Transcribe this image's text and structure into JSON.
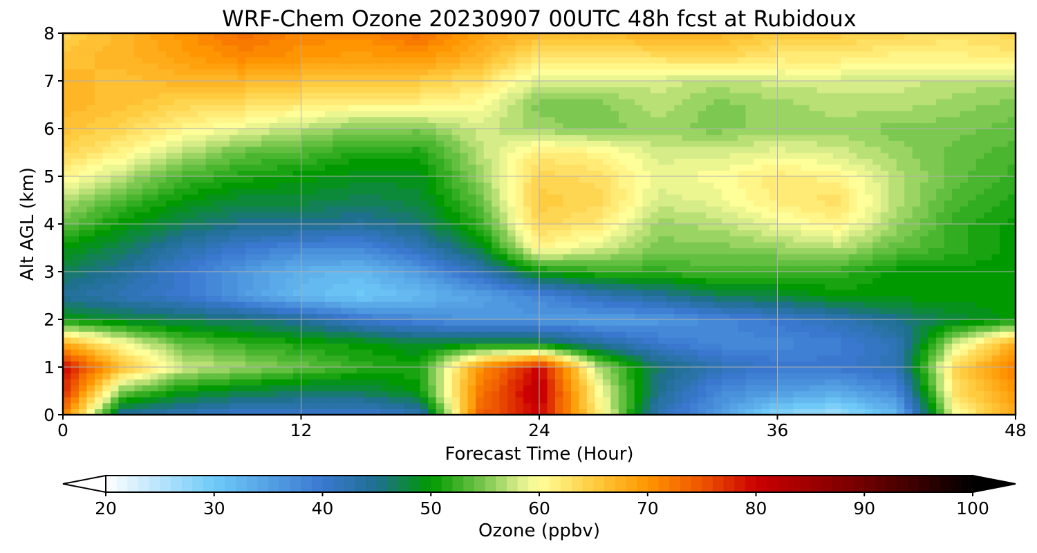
{
  "chart_data": {
    "type": "heatmap",
    "title": "WRF-Chem Ozone  20230907 00UTC 48h fcst at Rubidoux",
    "xlabel": "Forecast Time (Hour)",
    "ylabel": "Alt AGL (km)",
    "xlim": [
      0,
      48
    ],
    "ylim": [
      0,
      8
    ],
    "x_ticks": [
      "0",
      "12",
      "24",
      "36",
      "48"
    ],
    "y_ticks": [
      "0",
      "1",
      "2",
      "3",
      "4",
      "5",
      "6",
      "7",
      "8"
    ],
    "grid": true,
    "x": [
      0,
      3,
      6,
      9,
      12,
      15,
      18,
      21,
      24,
      27,
      30,
      33,
      36,
      39,
      42,
      45,
      48
    ],
    "y": [
      0,
      0.5,
      1,
      1.5,
      2,
      2.5,
      3,
      3.5,
      4,
      4.5,
      5,
      5.5,
      6,
      6.5,
      7,
      7.5,
      8
    ],
    "z": [
      [
        72,
        44,
        42,
        40,
        40,
        40,
        42,
        74,
        80,
        62,
        42,
        36,
        28,
        26,
        32,
        60,
        68
      ],
      [
        78,
        55,
        50,
        48,
        47,
        47,
        50,
        72,
        82,
        60,
        45,
        38,
        36,
        34,
        38,
        63,
        70
      ],
      [
        80,
        66,
        58,
        56,
        54,
        52,
        51,
        70,
        80,
        57,
        46,
        42,
        40,
        40,
        42,
        64,
        72
      ],
      [
        68,
        60,
        54,
        52,
        51,
        50,
        48,
        49,
        48,
        44,
        40,
        38,
        38,
        39,
        42,
        58,
        68
      ],
      [
        50,
        48,
        47,
        46,
        44,
        40,
        38,
        36,
        36,
        35,
        36,
        38,
        40,
        42,
        45,
        48,
        50
      ],
      [
        44,
        42,
        40,
        36,
        32,
        30,
        32,
        35,
        38,
        42,
        44,
        47,
        48,
        50,
        50,
        50,
        50
      ],
      [
        47,
        44,
        40,
        36,
        33,
        32,
        36,
        42,
        50,
        52,
        52,
        53,
        52,
        52,
        50,
        50,
        50
      ],
      [
        50,
        47,
        43,
        40,
        38,
        38,
        42,
        48,
        61,
        58,
        55,
        55,
        56,
        57,
        54,
        52,
        50
      ],
      [
        54,
        50,
        47,
        45,
        45,
        44,
        46,
        52,
        64,
        62,
        56,
        57,
        59,
        61,
        56,
        52,
        50
      ],
      [
        57,
        53,
        50,
        48,
        48,
        47,
        48,
        54,
        65,
        64,
        58,
        59,
        62,
        63,
        57,
        53,
        51
      ],
      [
        61,
        57,
        53,
        51,
        50,
        49,
        49,
        56,
        64,
        63,
        59,
        60,
        62,
        61,
        57,
        54,
        52
      ],
      [
        64,
        61,
        57,
        54,
        53,
        51,
        51,
        57,
        62,
        61,
        58,
        58,
        59,
        58,
        56,
        54,
        53
      ],
      [
        66,
        64,
        61,
        59,
        57,
        55,
        55,
        58,
        56,
        55,
        56,
        55,
        56,
        56,
        55,
        55,
        54
      ],
      [
        67,
        66,
        64,
        63,
        62,
        61,
        61,
        60,
        55,
        55,
        57,
        55,
        56,
        57,
        57,
        56,
        55
      ],
      [
        67,
        66,
        67,
        67,
        66,
        65,
        65,
        63,
        58,
        58,
        58,
        57,
        58,
        58,
        58,
        57,
        57
      ],
      [
        66,
        67,
        69,
        71,
        70,
        69,
        70,
        67,
        62,
        62,
        63,
        64,
        62,
        62,
        61,
        61,
        62
      ],
      [
        64,
        67,
        70,
        73,
        71,
        71,
        73,
        69,
        67,
        66,
        68,
        67,
        65,
        65,
        64,
        63,
        64
      ]
    ],
    "colorbar": {
      "label": "Ozone  (ppbv)",
      "min": 20,
      "max": 100,
      "extend": "both",
      "ticks": [
        "20",
        "30",
        "40",
        "50",
        "60",
        "70",
        "80",
        "90",
        "100"
      ],
      "stops": [
        {
          "v": 20,
          "c": "#ffffff"
        },
        {
          "v": 30,
          "c": "#6fcaf8"
        },
        {
          "v": 40,
          "c": "#3a78d0"
        },
        {
          "v": 45,
          "c": "#1f6f8f"
        },
        {
          "v": 50,
          "c": "#009a00"
        },
        {
          "v": 55,
          "c": "#7cc850"
        },
        {
          "v": 58,
          "c": "#d6ec88"
        },
        {
          "v": 60,
          "c": "#ffff9a"
        },
        {
          "v": 65,
          "c": "#ffcc40"
        },
        {
          "v": 70,
          "c": "#ff9500"
        },
        {
          "v": 75,
          "c": "#ee5500"
        },
        {
          "v": 80,
          "c": "#cc0000"
        },
        {
          "v": 90,
          "c": "#700000"
        },
        {
          "v": 100,
          "c": "#000000"
        }
      ]
    }
  }
}
